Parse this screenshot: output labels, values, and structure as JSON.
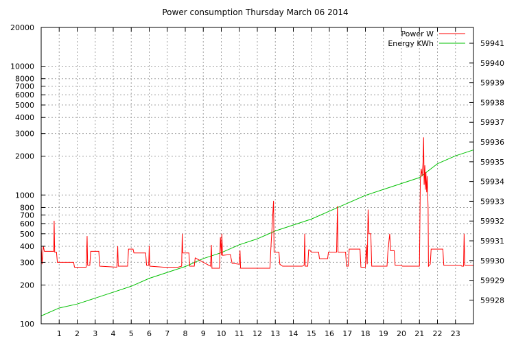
{
  "chart_data": {
    "type": "line",
    "title": "Power consumption Thursday March 06 2014",
    "x_ticks": [
      "1",
      "2",
      "3",
      "4",
      "5",
      "6",
      "7",
      "8",
      "9",
      "10",
      "11",
      "12",
      "13",
      "14",
      "15",
      "16",
      "17",
      "18",
      "19",
      "20",
      "21",
      "22",
      "23"
    ],
    "xlim": [
      0,
      24
    ],
    "y_left": {
      "scale": "log",
      "ylim": [
        100,
        20000
      ],
      "ticks": [
        100,
        200,
        300,
        400,
        500,
        600,
        700,
        800,
        1000,
        2000,
        3000,
        4000,
        5000,
        6000,
        7000,
        8000,
        10000,
        20000
      ]
    },
    "y_right": {
      "scale": "linear",
      "ylim": [
        59926.8,
        59941.8
      ],
      "ticks": [
        59928,
        59929,
        59930,
        59931,
        59932,
        59933,
        59934,
        59935,
        59936,
        59937,
        59938,
        59939,
        59940,
        59941
      ]
    },
    "grid": true,
    "legend_position": "top-right",
    "series": [
      {
        "name": "Power W",
        "axis": "left",
        "color": "#ff0000",
        "points": [
          [
            0.0,
            400
          ],
          [
            0.05,
            290
          ],
          [
            0.12,
            400
          ],
          [
            0.18,
            365
          ],
          [
            0.7,
            365
          ],
          [
            0.72,
            630
          ],
          [
            0.75,
            360
          ],
          [
            0.85,
            360
          ],
          [
            0.9,
            300
          ],
          [
            1.8,
            300
          ],
          [
            1.85,
            275
          ],
          [
            2.5,
            275
          ],
          [
            2.55,
            480
          ],
          [
            2.58,
            285
          ],
          [
            2.7,
            285
          ],
          [
            2.75,
            365
          ],
          [
            3.2,
            365
          ],
          [
            3.25,
            280
          ],
          [
            4.2,
            275
          ],
          [
            4.25,
            400
          ],
          [
            4.28,
            280
          ],
          [
            4.8,
            280
          ],
          [
            4.85,
            380
          ],
          [
            5.1,
            380
          ],
          [
            5.15,
            355
          ],
          [
            5.8,
            355
          ],
          [
            5.85,
            285
          ],
          [
            5.97,
            285
          ],
          [
            6.0,
            405
          ],
          [
            6.03,
            280
          ],
          [
            6.8,
            275
          ],
          [
            7.6,
            275
          ],
          [
            7.8,
            280
          ],
          [
            7.83,
            500
          ],
          [
            7.86,
            355
          ],
          [
            8.2,
            355
          ],
          [
            8.25,
            280
          ],
          [
            8.5,
            280
          ],
          [
            8.55,
            325
          ],
          [
            9.4,
            280
          ],
          [
            9.45,
            410
          ],
          [
            9.48,
            270
          ],
          [
            9.9,
            270
          ],
          [
            9.95,
            470
          ],
          [
            10.0,
            340
          ],
          [
            10.03,
            500
          ],
          [
            10.07,
            340
          ],
          [
            10.5,
            345
          ],
          [
            10.6,
            295
          ],
          [
            11.0,
            290
          ],
          [
            11.04,
            370
          ],
          [
            11.07,
            270
          ],
          [
            12.7,
            270
          ],
          [
            12.75,
            380
          ],
          [
            12.9,
            900
          ],
          [
            12.93,
            360
          ],
          [
            13.2,
            360
          ],
          [
            13.25,
            290
          ],
          [
            13.4,
            280
          ],
          [
            14.5,
            280
          ],
          [
            14.6,
            285
          ],
          [
            14.63,
            500
          ],
          [
            14.66,
            280
          ],
          [
            14.8,
            280
          ],
          [
            14.85,
            375
          ],
          [
            14.9,
            375
          ],
          [
            15.0,
            360
          ],
          [
            15.4,
            360
          ],
          [
            15.45,
            320
          ],
          [
            15.9,
            320
          ],
          [
            15.95,
            360
          ],
          [
            16.4,
            360
          ],
          [
            16.45,
            820
          ],
          [
            16.48,
            360
          ],
          [
            16.9,
            360
          ],
          [
            16.95,
            280
          ],
          [
            17.05,
            280
          ],
          [
            17.1,
            380
          ],
          [
            17.7,
            380
          ],
          [
            17.75,
            275
          ],
          [
            18.0,
            275
          ],
          [
            18.05,
            410
          ],
          [
            18.1,
            290
          ],
          [
            18.15,
            770
          ],
          [
            18.2,
            500
          ],
          [
            18.3,
            500
          ],
          [
            18.35,
            280
          ],
          [
            19.2,
            280
          ],
          [
            19.25,
            365
          ],
          [
            19.35,
            500
          ],
          [
            19.4,
            370
          ],
          [
            19.6,
            370
          ],
          [
            19.65,
            285
          ],
          [
            20.0,
            285
          ],
          [
            20.05,
            280
          ],
          [
            21.0,
            280
          ],
          [
            21.05,
            1300
          ],
          [
            21.1,
            1600
          ],
          [
            21.15,
            1400
          ],
          [
            21.2,
            1800
          ],
          [
            21.23,
            2800
          ],
          [
            21.26,
            1200
          ],
          [
            21.3,
            1700
          ],
          [
            21.33,
            1100
          ],
          [
            21.36,
            1500
          ],
          [
            21.4,
            1050
          ],
          [
            21.43,
            1400
          ],
          [
            21.46,
            1000
          ],
          [
            21.48,
            800
          ],
          [
            21.5,
            280
          ],
          [
            21.6,
            290
          ],
          [
            21.65,
            380
          ],
          [
            22.3,
            380
          ],
          [
            22.35,
            285
          ],
          [
            23.3,
            285
          ],
          [
            23.35,
            280
          ],
          [
            23.45,
            280
          ],
          [
            23.48,
            500
          ],
          [
            23.52,
            285
          ],
          [
            24.0,
            285
          ]
        ]
      },
      {
        "name": "Energy KWh",
        "axis": "right",
        "color": "#00c000",
        "points": [
          [
            0.0,
            59927.2
          ],
          [
            1.0,
            59927.6
          ],
          [
            2.0,
            59927.8
          ],
          [
            3.0,
            59928.1
          ],
          [
            4.0,
            59928.4
          ],
          [
            5.0,
            59928.7
          ],
          [
            6.0,
            59929.1
          ],
          [
            7.0,
            59929.4
          ],
          [
            8.0,
            59929.7
          ],
          [
            9.0,
            59930.1
          ],
          [
            10.0,
            59930.4
          ],
          [
            11.0,
            59930.8
          ],
          [
            12.0,
            59931.1
          ],
          [
            13.0,
            59931.5
          ],
          [
            14.0,
            59931.8
          ],
          [
            15.0,
            59932.1
          ],
          [
            16.0,
            59932.5
          ],
          [
            17.0,
            59932.9
          ],
          [
            18.0,
            59933.3
          ],
          [
            19.0,
            59933.6
          ],
          [
            20.0,
            59933.9
          ],
          [
            21.0,
            59934.2
          ],
          [
            22.0,
            59934.9
          ],
          [
            23.0,
            59935.3
          ],
          [
            24.0,
            59935.6
          ]
        ]
      }
    ]
  }
}
